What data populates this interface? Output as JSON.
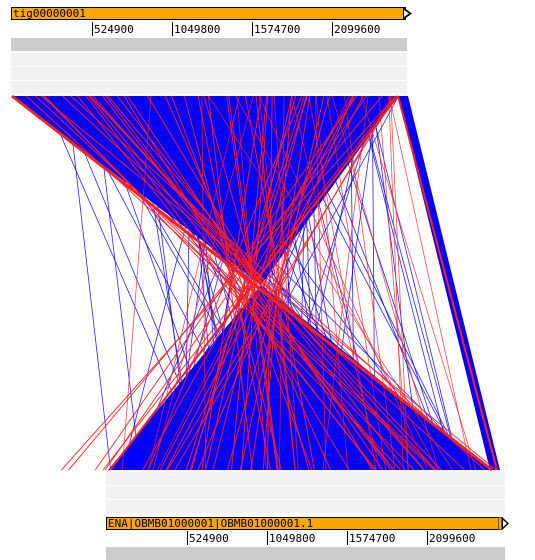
{
  "colors": {
    "contig_bar": "#ffa500",
    "forward_match": "#0000ff",
    "reverse_match": "#ff2020",
    "coverage_bar": "#cccccc",
    "feature_track": "#f2f2f2"
  },
  "top_sequence": {
    "name": "tig00000001",
    "ticks": [
      "524900",
      "1049800",
      "1574700",
      "2099600"
    ]
  },
  "bottom_sequence": {
    "name": "ENA|OBMB01000001|OBMB01000001.1",
    "ticks": [
      "524900",
      "1049800",
      "1574700",
      "2099600"
    ]
  }
}
